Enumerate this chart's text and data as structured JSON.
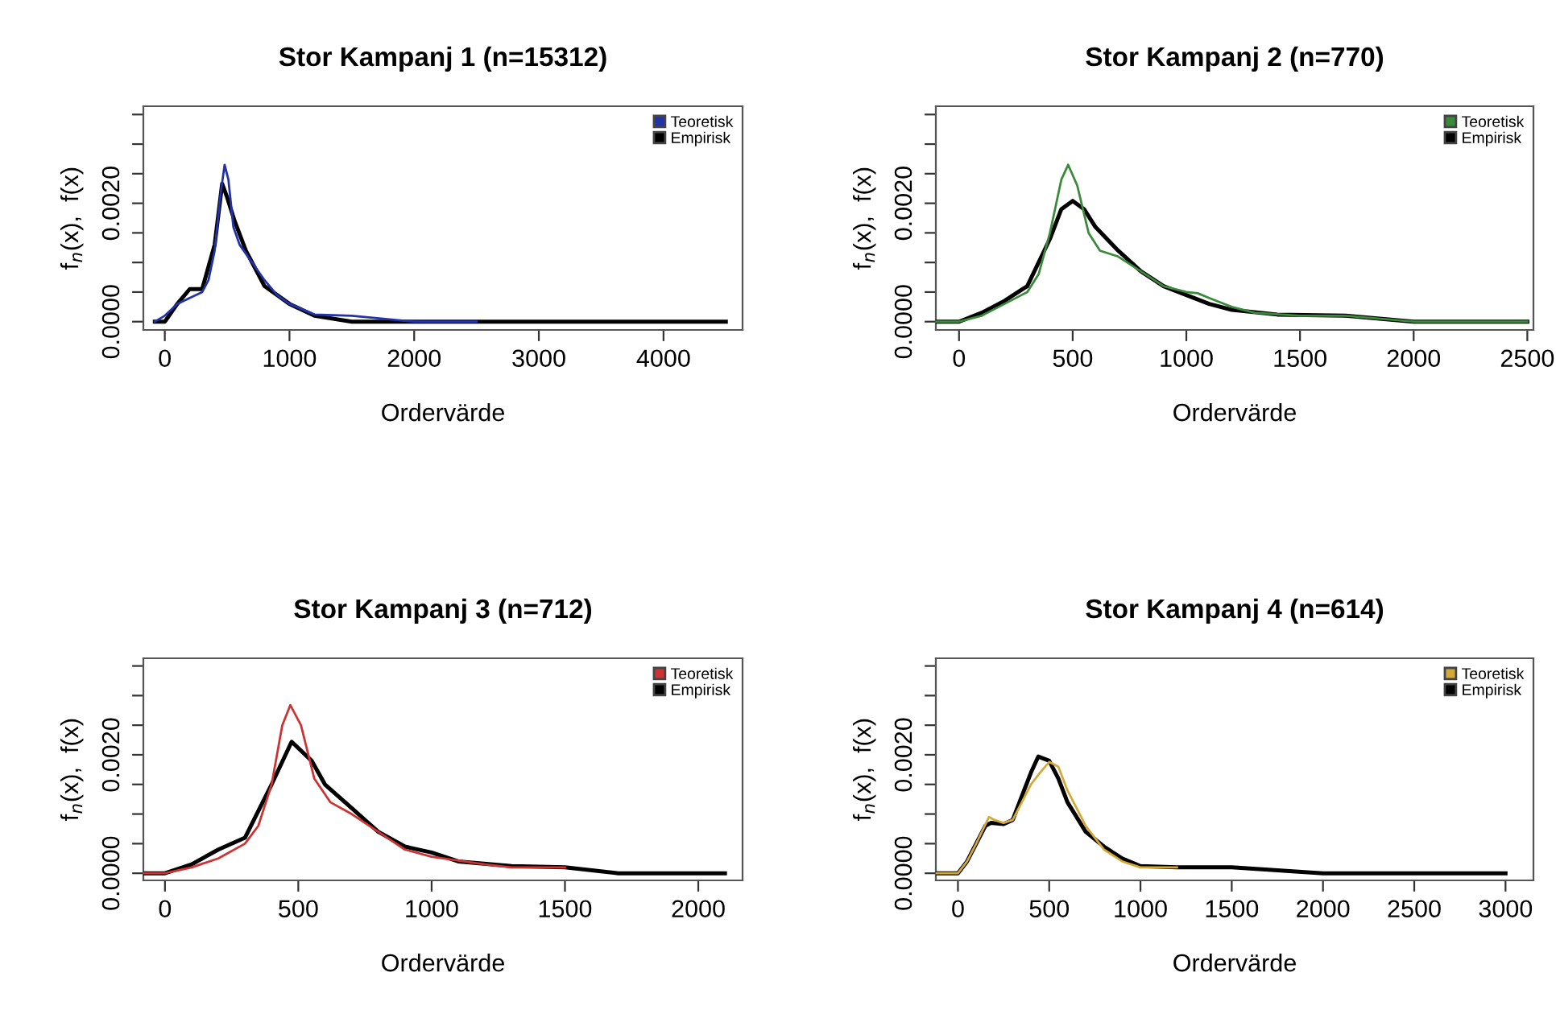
{
  "chart_data": [
    {
      "type": "line",
      "title": "Stor Kampanj 1 (n=15312)",
      "xlabel": "Ordervärde",
      "ylabel": "f$_{n}$(x),  f(x)",
      "legend": "top right",
      "grid": false,
      "xlim": [
        -172,
        4634
      ],
      "xticks": [
        0,
        1000,
        2000,
        3000,
        4000
      ],
      "ylim": [
        -0.00014,
        0.00364
      ],
      "yticks": [
        {
          "value": 0,
          "label": "0.0000"
        },
        {
          "value": 0.0005,
          "label": null
        },
        {
          "value": 0.001,
          "label": null
        },
        {
          "value": 0.0015,
          "label": null
        },
        {
          "value": 0.002,
          "label": "0.0020"
        },
        {
          "value": 0.0025,
          "label": null
        },
        {
          "value": 0.003,
          "label": null
        },
        {
          "value": 0.0035,
          "label": null
        }
      ],
      "series": [
        {
          "name": "Teoretisk",
          "color": "#2233aa",
          "x": [
            -80,
            0,
            100,
            200,
            300,
            350,
            400,
            450,
            480,
            510,
            550,
            600,
            700,
            800,
            900,
            1000,
            1200,
            1500,
            2000,
            2500
          ],
          "values": [
            0,
            0.0001,
            0.0003,
            0.0004,
            0.0005,
            0.0007,
            0.0012,
            0.0022,
            0.00265,
            0.0024,
            0.0016,
            0.0013,
            0.001,
            0.0007,
            0.00045,
            0.0003,
            0.00012,
            0.0001,
            0,
            0
          ]
        },
        {
          "name": "Empirisk",
          "color": "#000000",
          "x": [
            -80,
            0,
            100,
            200,
            300,
            400,
            460,
            500,
            560,
            650,
            800,
            1000,
            1200,
            1500,
            2000,
            4500
          ],
          "values": [
            0,
            0,
            0.0003,
            0.00055,
            0.00055,
            0.0013,
            0.00233,
            0.0021,
            0.0017,
            0.0012,
            0.0006,
            0.0003,
            0.0001,
            0,
            0,
            0
          ]
        }
      ]
    },
    {
      "type": "line",
      "title": "Stor Kampanj 2 (n=770)",
      "xlabel": "Ordervärde",
      "ylabel": "f$_{n}$(x),  f(x)",
      "legend": "top right",
      "grid": false,
      "xlim": [
        -102,
        2527
      ],
      "xticks": [
        0,
        500,
        1000,
        1500,
        2000,
        2500
      ],
      "ylim": [
        -0.00014,
        0.00364
      ],
      "yticks": [
        {
          "value": 0,
          "label": "0.0000"
        },
        {
          "value": 0.0005,
          "label": null
        },
        {
          "value": 0.001,
          "label": null
        },
        {
          "value": 0.0015,
          "label": null
        },
        {
          "value": 0.002,
          "label": "0.0020"
        },
        {
          "value": 0.0025,
          "label": null
        },
        {
          "value": 0.003,
          "label": null
        },
        {
          "value": 0.0035,
          "label": null
        }
      ],
      "series": [
        {
          "name": "Teoretisk",
          "color": "#3a8a3a",
          "x": [
            -100,
            0,
            100,
            200,
            300,
            350,
            400,
            450,
            480,
            520,
            570,
            620,
            700,
            800,
            900,
            1000,
            1050,
            1100,
            1200,
            1300,
            1500,
            1700,
            2000,
            2500
          ],
          "values": [
            0,
            0,
            0.0001,
            0.0003,
            0.0005,
            0.0008,
            0.0015,
            0.0024,
            0.00265,
            0.0023,
            0.0015,
            0.0012,
            0.0011,
            0.00085,
            0.0006,
            0.0005,
            0.00048,
            0.0004,
            0.00025,
            0.00015,
            0.0001,
            0.0001,
            0,
            0
          ]
        },
        {
          "name": "Empirisk",
          "color": "#000000",
          "x": [
            -100,
            0,
            100,
            200,
            300,
            400,
            450,
            500,
            550,
            600,
            700,
            800,
            900,
            1000,
            1100,
            1200,
            1400,
            1700,
            2000,
            2500
          ],
          "values": [
            0,
            0,
            0.00015,
            0.00035,
            0.0006,
            0.0014,
            0.0019,
            0.00204,
            0.0019,
            0.0016,
            0.0012,
            0.00085,
            0.0006,
            0.00045,
            0.0003,
            0.0002,
            0.00012,
            0.0001,
            0,
            0
          ]
        }
      ]
    },
    {
      "type": "line",
      "title": "Stor Kampanj 3 (n=712)",
      "xlabel": "Ordervärde",
      "ylabel": "f$_{n}$(x),  f(x)",
      "legend": "top right",
      "grid": false,
      "xlim": [
        -81,
        2166
      ],
      "xticks": [
        0,
        500,
        1000,
        1500,
        2000
      ],
      "ylim": [
        -0.00012,
        0.00363
      ],
      "yticks": [
        {
          "value": 0,
          "label": "0.0000"
        },
        {
          "value": 0.0005,
          "label": null
        },
        {
          "value": 0.001,
          "label": null
        },
        {
          "value": 0.0015,
          "label": null
        },
        {
          "value": 0.002,
          "label": "0.0020"
        },
        {
          "value": 0.0025,
          "label": null
        },
        {
          "value": 0.003,
          "label": null
        },
        {
          "value": 0.0035,
          "label": null
        }
      ],
      "series": [
        {
          "name": "Teoretisk",
          "color": "#cc3333",
          "x": [
            -80,
            0,
            100,
            200,
            300,
            350,
            400,
            440,
            470,
            510,
            560,
            620,
            700,
            800,
            900,
            1000,
            1200,
            1300,
            1500
          ],
          "values": [
            0,
            0,
            0.0001,
            0.00025,
            0.0005,
            0.0008,
            0.0015,
            0.0025,
            0.00284,
            0.0025,
            0.0016,
            0.0012,
            0.001,
            0.0007,
            0.0004,
            0.00028,
            0.00015,
            0.0001,
            0.0001
          ]
        },
        {
          "name": "Empirisk",
          "color": "#000000",
          "x": [
            -80,
            0,
            100,
            200,
            300,
            400,
            475,
            550,
            600,
            700,
            800,
            900,
            1000,
            1100,
            1300,
            1500,
            1700,
            2100
          ],
          "values": [
            0,
            0,
            0.00015,
            0.0004,
            0.0006,
            0.0015,
            0.00222,
            0.0019,
            0.0015,
            0.0011,
            0.0007,
            0.00045,
            0.00035,
            0.0002,
            0.00012,
            0.0001,
            0,
            0
          ]
        }
      ]
    },
    {
      "type": "line",
      "title": "Stor Kampanj 4 (n=614)",
      "xlabel": "Ordervärde",
      "ylabel": "f$_{n}$(x),  f(x)",
      "legend": "top right",
      "grid": false,
      "xlim": [
        -121,
        3153
      ],
      "xticks": [
        0,
        500,
        1000,
        1500,
        2000,
        2500,
        3000
      ],
      "ylim": [
        -0.00012,
        0.00363
      ],
      "yticks": [
        {
          "value": 0,
          "label": "0.0000"
        },
        {
          "value": 0.0005,
          "label": null
        },
        {
          "value": 0.001,
          "label": null
        },
        {
          "value": 0.0015,
          "label": null
        },
        {
          "value": 0.002,
          "label": "0.0020"
        },
        {
          "value": 0.0025,
          "label": null
        },
        {
          "value": 0.003,
          "label": null
        },
        {
          "value": 0.0035,
          "label": null
        }
      ],
      "series": [
        {
          "name": "Teoretisk",
          "color": "#d4a93a",
          "x": [
            -120,
            0,
            50,
            100,
            170,
            200,
            250,
            300,
            400,
            450,
            500,
            550,
            600,
            700,
            800,
            900,
            1000,
            1200
          ],
          "values": [
            0,
            0,
            0.0002,
            0.0005,
            0.00095,
            0.0009,
            0.00085,
            0.0009,
            0.0015,
            0.0017,
            0.00188,
            0.0018,
            0.0014,
            0.0008,
            0.0004,
            0.0002,
            0.0001,
            0.0001
          ]
        },
        {
          "name": "Empirisk",
          "color": "#000000",
          "x": [
            -120,
            0,
            50,
            100,
            150,
            180,
            250,
            300,
            350,
            400,
            440,
            500,
            550,
            600,
            700,
            800,
            900,
            1000,
            1200,
            1350,
            1400,
            1500,
            2000,
            3000
          ],
          "values": [
            0,
            0,
            0.0002,
            0.0005,
            0.0008,
            0.00085,
            0.00083,
            0.0009,
            0.0013,
            0.0017,
            0.00197,
            0.0019,
            0.0016,
            0.0012,
            0.0007,
            0.00045,
            0.00025,
            0.00012,
            0.0001,
            0.0001,
            0.0001,
            0.0001,
            0,
            0
          ]
        }
      ]
    }
  ]
}
